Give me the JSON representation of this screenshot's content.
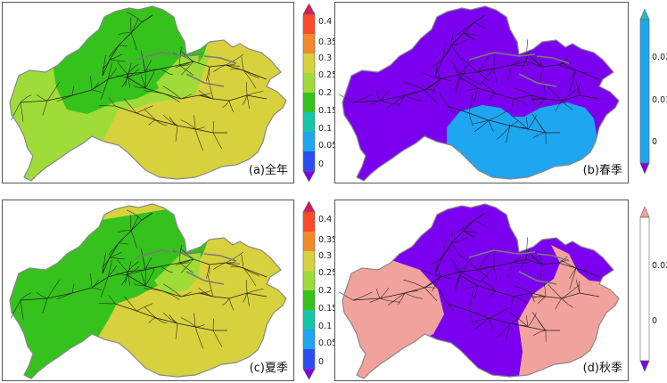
{
  "colors": {
    "purple": "#7b00f0",
    "blue": "#1ea6f0",
    "green": "#35c21c",
    "light_green": "#9fdc39",
    "yellow": "#d8d13e",
    "salmon": "#f2a29c",
    "river": "#202020",
    "boundary": "#888888",
    "tributary": "#7a7a7a"
  },
  "panels": [
    {
      "id": "a",
      "label": "(a)全年"
    },
    {
      "id": "b",
      "label": "(b)春季"
    },
    {
      "id": "c",
      "label": "(c)夏季"
    },
    {
      "id": "d",
      "label": "(d)秋季"
    }
  ],
  "colorbars": {
    "annual": {
      "ticks": [
        "0.4",
        "0.35",
        "0.3",
        "0.25",
        "0.2",
        "0.15",
        "0.1",
        "0.05",
        "0"
      ],
      "colors": [
        "#d81a5d",
        "#ff4a2a",
        "#f08a2a",
        "#d8d13e",
        "#9fdc39",
        "#35c21c",
        "#17c5a8",
        "#1ea6f0",
        "#2c4cf0",
        "#7b00f0"
      ]
    },
    "spring": {
      "ticks": [
        "0.02",
        "0.01",
        "0"
      ],
      "colors": [
        "#1fbfbf",
        "#1ea6f0",
        "#7b00f0"
      ]
    },
    "summer": {
      "ticks": [
        "0.4",
        "0.35",
        "0.3",
        "0.25",
        "0.2",
        "0.15",
        "0.1",
        "0.05",
        "0"
      ],
      "colors": [
        "#d81a5d",
        "#ff4a2a",
        "#f08a2a",
        "#d8d13e",
        "#9fdc39",
        "#35c21c",
        "#17c5a8",
        "#1ea6f0",
        "#2c4cf0",
        "#7b00f0"
      ]
    },
    "autumn": {
      "ticks": [
        "0.02",
        "0"
      ],
      "colors": [
        "#f2a29c",
        "#7b00f0"
      ]
    }
  }
}
